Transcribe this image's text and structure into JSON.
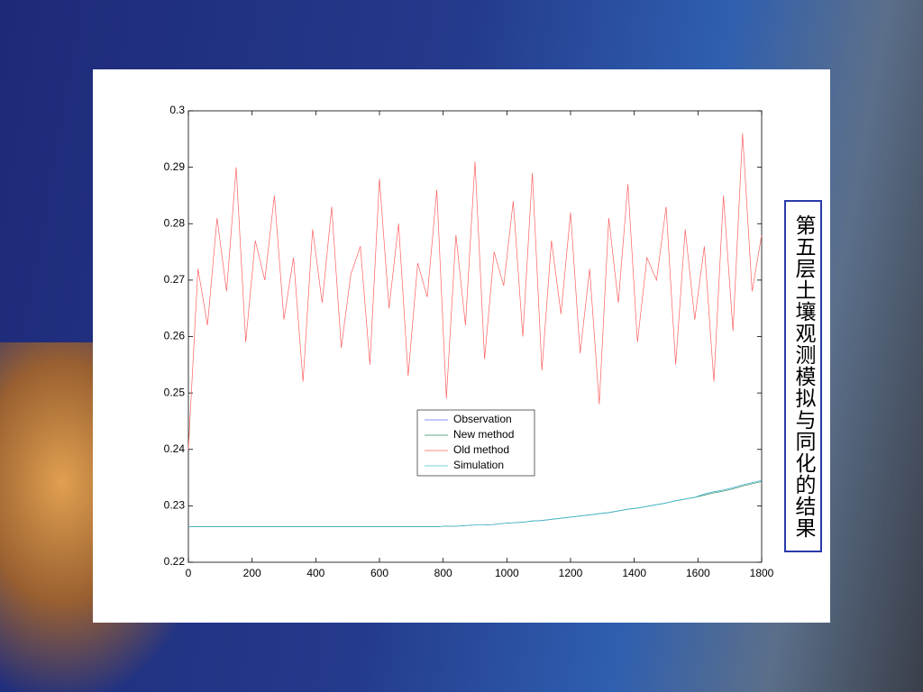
{
  "chart_data": {
    "type": "line",
    "title": "第五层土壤观测模拟与同化的结果",
    "x": [
      0,
      30,
      60,
      90,
      120,
      150,
      180,
      210,
      240,
      270,
      300,
      330,
      360,
      390,
      420,
      450,
      480,
      510,
      540,
      570,
      600,
      630,
      660,
      690,
      720,
      750,
      780,
      810,
      840,
      870,
      900,
      930,
      960,
      990,
      1020,
      1050,
      1080,
      1110,
      1140,
      1170,
      1200,
      1230,
      1260,
      1290,
      1320,
      1350,
      1380,
      1410,
      1440,
      1470,
      1500,
      1530,
      1560,
      1590,
      1620,
      1650,
      1680,
      1710,
      1740,
      1770,
      1800
    ],
    "series": [
      {
        "name": "Observation",
        "color": "#6a6aff",
        "values": [
          0.2263,
          0.2263,
          0.2263,
          0.2263,
          0.2263,
          0.2263,
          0.2263,
          0.2263,
          0.2263,
          0.2263,
          0.2263,
          0.2263,
          0.2263,
          0.2263,
          0.2263,
          0.2263,
          0.2263,
          0.2263,
          0.2263,
          0.2263,
          0.2263,
          0.2263,
          0.2263,
          0.2263,
          0.2263,
          0.2263,
          0.2263,
          0.2264,
          0.2264,
          0.2265,
          0.2266,
          0.2266,
          0.2267,
          0.2269,
          0.227,
          0.2271,
          0.2273,
          0.2274,
          0.2276,
          0.2278,
          0.228,
          0.2282,
          0.2284,
          0.2286,
          0.2288,
          0.2291,
          0.2294,
          0.2296,
          0.2299,
          0.2302,
          0.2305,
          0.2309,
          0.2312,
          0.2315,
          0.2321,
          0.2325,
          0.2328,
          0.2332,
          0.2337,
          0.2341,
          0.2345
        ]
      },
      {
        "name": "New method",
        "color": "#2e8b57",
        "values": [
          0.2263,
          0.2263,
          0.2263,
          0.2263,
          0.2263,
          0.2263,
          0.2263,
          0.2263,
          0.2263,
          0.2263,
          0.2263,
          0.2263,
          0.2263,
          0.2263,
          0.2263,
          0.2263,
          0.2263,
          0.2263,
          0.2263,
          0.2263,
          0.2263,
          0.2263,
          0.2263,
          0.2263,
          0.2263,
          0.2263,
          0.2263,
          0.2264,
          0.2264,
          0.2265,
          0.2266,
          0.2266,
          0.2267,
          0.2269,
          0.227,
          0.2271,
          0.2273,
          0.2274,
          0.2276,
          0.2278,
          0.228,
          0.2282,
          0.2284,
          0.2286,
          0.2288,
          0.2291,
          0.2294,
          0.2296,
          0.2299,
          0.2302,
          0.2305,
          0.2309,
          0.2312,
          0.2315,
          0.2319,
          0.2323,
          0.2326,
          0.233,
          0.2335,
          0.2339,
          0.2343
        ]
      },
      {
        "name": "Old method",
        "color": "#ff6060",
        "values": [
          0.24,
          0.272,
          0.262,
          0.281,
          0.268,
          0.29,
          0.259,
          0.277,
          0.27,
          0.285,
          0.263,
          0.274,
          0.252,
          0.279,
          0.266,
          0.283,
          0.258,
          0.271,
          0.276,
          0.255,
          0.288,
          0.265,
          0.28,
          0.253,
          0.273,
          0.267,
          0.286,
          0.249,
          0.278,
          0.262,
          0.291,
          0.256,
          0.275,
          0.269,
          0.284,
          0.26,
          0.289,
          0.254,
          0.277,
          0.264,
          0.282,
          0.257,
          0.272,
          0.248,
          0.281,
          0.266,
          0.287,
          0.259,
          0.274,
          0.27,
          0.283,
          0.255,
          0.279,
          0.263,
          0.276,
          0.252,
          0.285,
          0.261,
          0.296,
          0.268,
          0.278
        ]
      },
      {
        "name": "Simulation",
        "color": "#40c0d0",
        "values": [
          0.2263,
          0.2263,
          0.2263,
          0.2263,
          0.2263,
          0.2263,
          0.2263,
          0.2263,
          0.2263,
          0.2263,
          0.2263,
          0.2263,
          0.2263,
          0.2263,
          0.2263,
          0.2263,
          0.2263,
          0.2263,
          0.2263,
          0.2263,
          0.2263,
          0.2263,
          0.2263,
          0.2263,
          0.2263,
          0.2263,
          0.2263,
          0.2264,
          0.2264,
          0.2265,
          0.2266,
          0.2266,
          0.2267,
          0.2269,
          0.227,
          0.2271,
          0.2273,
          0.2274,
          0.2276,
          0.2278,
          0.228,
          0.2282,
          0.2284,
          0.2286,
          0.2288,
          0.2291,
          0.2294,
          0.2296,
          0.2299,
          0.2302,
          0.2305,
          0.2309,
          0.2312,
          0.2315,
          0.2321,
          0.2325,
          0.2328,
          0.2332,
          0.2337,
          0.2341,
          0.2345
        ]
      }
    ],
    "xlim": [
      0,
      1800
    ],
    "xticks": [
      0,
      200,
      400,
      600,
      800,
      1000,
      1200,
      1400,
      1600,
      1800
    ],
    "ylim": [
      0.22,
      0.3
    ],
    "yticks": [
      0.22,
      0.23,
      0.24,
      0.25,
      0.26,
      0.27,
      0.28,
      0.29,
      0.3
    ],
    "grid": false,
    "legend": "center"
  }
}
